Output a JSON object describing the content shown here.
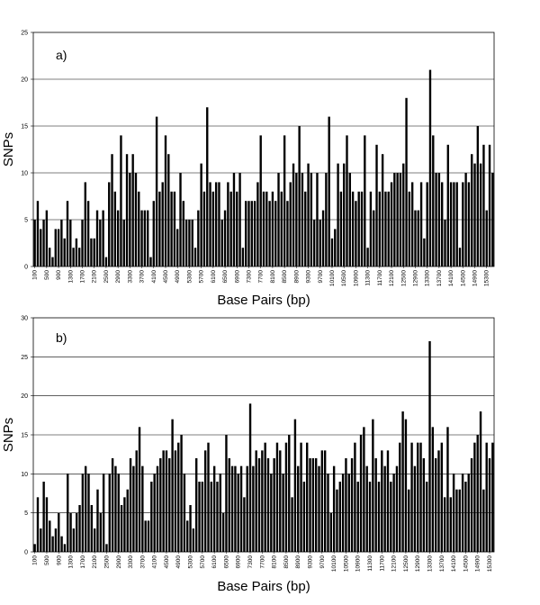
{
  "chart_data": [
    {
      "type": "bar",
      "panel_label": "a)",
      "ylabel": "SNPs",
      "xlabel": "Base Pairs (bp)",
      "ylim": [
        0,
        25
      ],
      "yticks": [
        0,
        5,
        10,
        15,
        20,
        25
      ],
      "grid": true,
      "bar_color": "#000000",
      "x_start": 100,
      "x_step": 100,
      "tick_labels": [
        "100",
        "500",
        "900",
        "1300",
        "1700",
        "2100",
        "2500",
        "2900",
        "3300",
        "3700",
        "4100",
        "4500",
        "4900",
        "5300",
        "5700",
        "6100",
        "6500",
        "6900",
        "7300",
        "7700",
        "8100",
        "8500",
        "8900",
        "9300",
        "9700",
        "10100",
        "10500",
        "10900",
        "11300",
        "11700",
        "12100",
        "12500",
        "12900",
        "13300",
        "13700",
        "14100",
        "14500",
        "14900",
        "15300"
      ],
      "values": [
        5,
        7,
        4,
        5,
        6,
        2,
        1,
        4,
        4,
        5,
        3,
        7,
        5,
        2,
        3,
        2,
        5,
        9,
        7,
        3,
        3,
        6,
        5,
        6,
        1,
        9,
        12,
        8,
        6,
        14,
        5,
        12,
        10,
        12,
        10,
        8,
        6,
        6,
        6,
        1,
        7,
        16,
        8,
        9,
        14,
        12,
        8,
        8,
        4,
        10,
        7,
        5,
        5,
        5,
        2,
        6,
        11,
        8,
        17,
        9,
        8,
        9,
        9,
        5,
        6,
        9,
        8,
        10,
        8,
        10,
        2,
        7,
        7,
        7,
        7,
        9,
        14,
        8,
        8,
        7,
        8,
        7,
        10,
        8,
        14,
        7,
        9,
        11,
        10,
        15,
        10,
        8,
        11,
        10,
        5,
        10,
        5,
        6,
        10,
        16,
        3,
        4,
        11,
        8,
        11,
        14,
        10,
        8,
        7,
        8,
        8,
        14,
        2,
        8,
        6,
        13,
        8,
        12,
        8,
        8,
        9,
        10,
        10,
        10,
        11,
        18,
        8,
        9,
        6,
        6,
        9,
        3,
        9,
        21,
        14,
        10,
        10,
        9,
        5,
        13,
        9,
        9,
        9,
        2,
        9,
        10,
        9,
        12,
        11,
        15,
        11,
        13,
        6,
        13,
        10
      ]
    },
    {
      "type": "bar",
      "panel_label": "b)",
      "ylabel": "SNPs",
      "xlabel": "Base Pairs (bp)",
      "ylim": [
        0,
        30
      ],
      "yticks": [
        0,
        5,
        10,
        15,
        20,
        25,
        30
      ],
      "grid": true,
      "bar_color": "#000000",
      "x_start": 100,
      "x_step": 100,
      "tick_labels": [
        "100",
        "500",
        "900",
        "1300",
        "1700",
        "2100",
        "2500",
        "2900",
        "3300",
        "3700",
        "4100",
        "4500",
        "4900",
        "5300",
        "5700",
        "6100",
        "6500",
        "6900",
        "7300",
        "7700",
        "8100",
        "8500",
        "8900",
        "9300",
        "9700",
        "10100",
        "10500",
        "10900",
        "11300",
        "11700",
        "12100",
        "12500",
        "12900",
        "13300",
        "13700",
        "14100",
        "14500",
        "14900",
        "15300"
      ],
      "values": [
        1,
        7,
        3,
        9,
        7,
        4,
        2,
        3,
        5,
        2,
        1,
        10,
        5,
        3,
        5,
        6,
        10,
        11,
        10,
        6,
        3,
        8,
        5,
        10,
        1,
        10,
        12,
        11,
        10,
        6,
        7,
        8,
        12,
        11,
        13,
        16,
        11,
        4,
        4,
        9,
        10,
        11,
        12,
        13,
        13,
        12,
        17,
        13,
        14,
        15,
        10,
        4,
        6,
        3,
        12,
        9,
        9,
        13,
        14,
        9,
        11,
        9,
        10,
        5,
        15,
        12,
        11,
        11,
        10,
        11,
        7,
        11,
        19,
        11,
        13,
        12,
        13,
        14,
        12,
        10,
        12,
        14,
        13,
        10,
        14,
        15,
        7,
        17,
        11,
        14,
        9,
        14,
        12,
        12,
        12,
        11,
        13,
        13,
        10,
        5,
        11,
        8,
        9,
        10,
        12,
        10,
        12,
        14,
        9,
        15,
        16,
        11,
        9,
        17,
        12,
        9,
        13,
        11,
        13,
        9,
        10,
        11,
        14,
        18,
        17,
        8,
        14,
        11,
        14,
        14,
        12,
        9,
        27,
        16,
        12,
        13,
        14,
        7,
        16,
        7,
        10,
        8,
        8,
        10,
        9,
        10,
        12,
        14,
        15,
        18,
        8,
        14,
        12,
        14
      ]
    }
  ]
}
